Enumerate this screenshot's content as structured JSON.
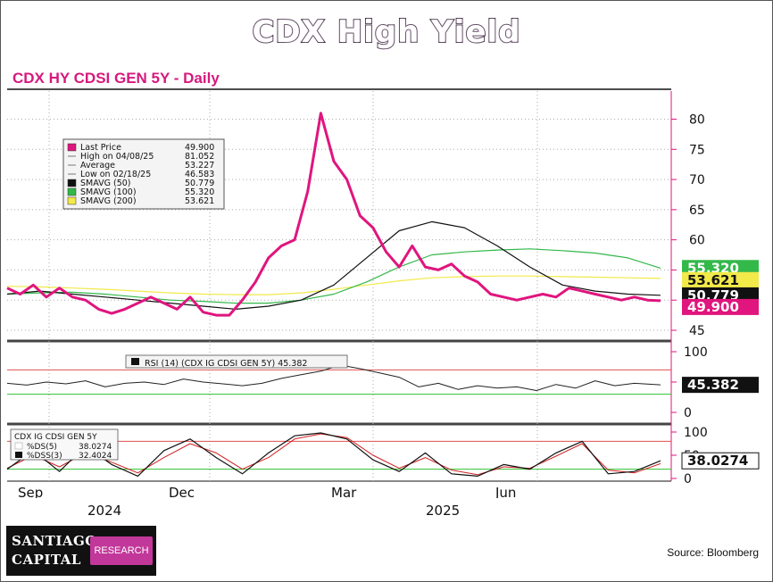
{
  "title": "CDX High Yield",
  "subtitle": "CDX HY CDSI GEN 5Y - Daily",
  "source": "Source: Bloomberg",
  "logo": {
    "line1": "SANTIAGO",
    "line2": "CAPITAL",
    "badge": "RESEARCH"
  },
  "colors": {
    "price": "#e0157e",
    "sma50": "#111111",
    "sma100": "#33b84a",
    "sma200": "#f2e94a",
    "overbought": "#e05050",
    "oversold": "#30c030"
  },
  "chart_data": [
    {
      "type": "line",
      "panel": "price",
      "ylim": [
        45,
        82
      ],
      "yticks": [
        45,
        50,
        55,
        60,
        65,
        70,
        75,
        80
      ],
      "x_labels": [
        "Sep",
        "Dec",
        "Mar",
        "Jun"
      ],
      "year_labels": [
        "2024",
        "2025"
      ],
      "legend": [
        {
          "label": "Last Price",
          "value": "49.900"
        },
        {
          "label": "High on 04/08/25",
          "value": "81.052"
        },
        {
          "label": "Average",
          "value": "53.227"
        },
        {
          "label": "Low on 02/18/25",
          "value": "46.583"
        },
        {
          "label": "SMAVG (50)",
          "value": "50.779"
        },
        {
          "label": "SMAVG (100)",
          "value": "55.320"
        },
        {
          "label": "SMAVG (200)",
          "value": "53.621"
        }
      ],
      "series": [
        {
          "name": "Last Price",
          "last": "49.900",
          "x": [
            0,
            2,
            4,
            6,
            8,
            10,
            12,
            14,
            16,
            18,
            20,
            22,
            24,
            26,
            28,
            30,
            32,
            34,
            36,
            38,
            40,
            42,
            44,
            46,
            48,
            50,
            52,
            54,
            56,
            58,
            60,
            62,
            64,
            66,
            68,
            70,
            72,
            74,
            76,
            78,
            80,
            82,
            84,
            86,
            88,
            90,
            92,
            94,
            96,
            98,
            100
          ],
          "values": [
            52,
            51,
            52.5,
            50.5,
            52,
            50.5,
            50,
            48.5,
            47.8,
            48.5,
            49.5,
            50.5,
            49.5,
            48.5,
            50.5,
            48,
            47.5,
            47.5,
            50,
            53,
            57,
            59,
            60,
            68,
            81,
            73,
            70,
            64,
            62,
            58,
            55.5,
            59,
            55.5,
            55,
            56,
            54,
            53,
            51,
            50.5,
            50,
            50.5,
            51,
            50.5,
            52,
            51.5,
            51,
            50.5,
            50,
            50.5,
            50,
            49.9
          ]
        },
        {
          "name": "SMAVG (50)",
          "last": "50.779",
          "x": [
            0,
            5,
            10,
            15,
            20,
            25,
            30,
            35,
            40,
            45,
            50,
            55,
            60,
            65,
            70,
            75,
            80,
            85,
            90,
            95,
            100
          ],
          "values": [
            51,
            51.5,
            51,
            50.5,
            50,
            49.5,
            49,
            48.5,
            49,
            50,
            52.5,
            57,
            61.5,
            63,
            62,
            59,
            55.5,
            52.5,
            51.5,
            51,
            50.8
          ]
        },
        {
          "name": "SMAVG (100)",
          "last": "55.320",
          "x": [
            0,
            5,
            10,
            15,
            20,
            25,
            30,
            35,
            40,
            45,
            50,
            55,
            60,
            65,
            70,
            75,
            80,
            85,
            90,
            95,
            100
          ],
          "values": [
            51,
            51.2,
            51.3,
            51,
            50.5,
            50,
            49.8,
            49.5,
            49.5,
            50,
            51,
            53,
            55.5,
            57.5,
            58,
            58.3,
            58.5,
            58.2,
            57.8,
            57,
            55.3
          ]
        },
        {
          "name": "SMAVG (200)",
          "last": "53.621",
          "x": [
            0,
            5,
            10,
            15,
            20,
            25,
            30,
            35,
            40,
            45,
            50,
            55,
            60,
            65,
            70,
            75,
            80,
            85,
            90,
            95,
            100
          ],
          "values": [
            52.3,
            52.2,
            52,
            51.8,
            51.5,
            51.2,
            51,
            50.9,
            50.9,
            51.2,
            51.8,
            52.5,
            53.2,
            53.7,
            53.9,
            54,
            54,
            53.9,
            53.8,
            53.7,
            53.6
          ]
        }
      ]
    },
    {
      "type": "line",
      "panel": "rsi",
      "ylim": [
        0,
        100
      ],
      "yticks": [
        0,
        50,
        100
      ],
      "legend_label": "RSI (14) (CDX IG CDSI GEN 5Y) 45.382",
      "last": "45.382",
      "levels": [
        70,
        30
      ],
      "series": [
        {
          "name": "RSI (14)",
          "x": [
            0,
            3,
            6,
            9,
            12,
            15,
            18,
            21,
            24,
            27,
            30,
            33,
            36,
            39,
            42,
            45,
            48,
            51,
            54,
            57,
            60,
            63,
            66,
            69,
            72,
            75,
            78,
            81,
            84,
            87,
            90,
            93,
            96,
            100
          ],
          "values": [
            48,
            45,
            50,
            47,
            52,
            42,
            48,
            50,
            46,
            55,
            50,
            47,
            44,
            48,
            56,
            62,
            68,
            78,
            72,
            65,
            58,
            42,
            48,
            38,
            44,
            40,
            42,
            36,
            46,
            40,
            52,
            44,
            48,
            45.4
          ]
        }
      ]
    },
    {
      "type": "line",
      "panel": "stochastic",
      "ylim": [
        0,
        100
      ],
      "yticks": [
        0,
        50,
        100
      ],
      "legend": [
        {
          "label": "CDX IG CDSI GEN 5Y",
          "value": ""
        },
        {
          "label": "%DS(5)",
          "value": "38.0274"
        },
        {
          "label": "%DSS(3)",
          "value": "32.4024"
        }
      ],
      "last": "38.0274",
      "levels": [
        80,
        20
      ],
      "series": [
        {
          "name": "%DS(5)",
          "x": [
            0,
            4,
            8,
            12,
            16,
            20,
            24,
            28,
            32,
            36,
            40,
            44,
            48,
            52,
            56,
            60,
            64,
            68,
            72,
            76,
            80,
            84,
            88,
            92,
            96,
            100
          ],
          "values": [
            20,
            60,
            15,
            70,
            30,
            5,
            60,
            85,
            45,
            10,
            55,
            92,
            98,
            85,
            40,
            15,
            55,
            10,
            5,
            30,
            20,
            55,
            80,
            10,
            15,
            38
          ]
        },
        {
          "name": "%DSS(3)",
          "x": [
            0,
            4,
            8,
            12,
            16,
            20,
            24,
            28,
            32,
            36,
            40,
            44,
            48,
            52,
            56,
            60,
            64,
            68,
            72,
            76,
            80,
            84,
            88,
            92,
            96,
            100
          ],
          "values": [
            22,
            50,
            25,
            55,
            35,
            12,
            45,
            75,
            55,
            20,
            45,
            85,
            96,
            88,
            50,
            22,
            45,
            18,
            8,
            25,
            22,
            48,
            75,
            18,
            12,
            32
          ]
        }
      ]
    }
  ]
}
